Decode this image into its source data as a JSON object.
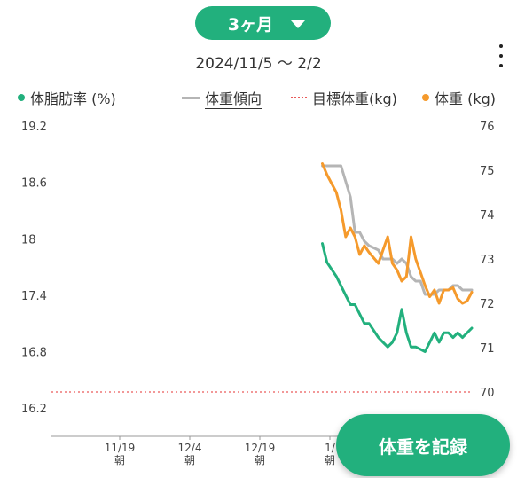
{
  "header": {
    "period_label": "3ヶ月",
    "date_range": "2024/11/5 〜 2/2"
  },
  "legend": {
    "body_fat": "体脂肪率 (%)",
    "trend": "体重傾向",
    "target": "目標体重(kg)",
    "weight": "体重 (kg)"
  },
  "colors": {
    "accent": "#22b07d",
    "body_fat": "#22b07d",
    "trend": "#b5b5b5",
    "target": "#e95a5a",
    "weight": "#f59a2c"
  },
  "record_button": "体重を記録",
  "chart_data": {
    "type": "line",
    "x_tick_labels": [
      {
        "date": "11/19",
        "sub": "朝"
      },
      {
        "date": "12/4",
        "sub": "朝"
      },
      {
        "date": "12/19",
        "sub": "朝"
      },
      {
        "date": "1/",
        "sub": "朝"
      }
    ],
    "left_axis": {
      "ticks": [
        "19.2",
        "18.6",
        "18",
        "17.4",
        "16.8",
        "16.2"
      ],
      "ylim": [
        15.9,
        19.2
      ]
    },
    "right_axis": {
      "ticks": [
        "76",
        "75",
        "74",
        "73",
        "72",
        "71",
        "70"
      ],
      "ylim": [
        69.0,
        76.0
      ]
    },
    "x_day_range": [
      0,
      90
    ],
    "target_weight": 70.0,
    "series": [
      {
        "name": "体脂肪率 (%)",
        "axis": "left",
        "x": [
          58,
          59,
          61,
          63,
          64,
          65,
          67,
          68,
          70,
          71,
          72,
          73,
          74,
          75,
          76,
          77,
          78,
          80,
          81,
          82,
          83,
          84,
          85,
          86,
          87,
          88,
          89,
          90
        ],
        "y": [
          17.95,
          17.75,
          17.6,
          17.4,
          17.3,
          17.3,
          17.1,
          17.1,
          16.95,
          16.9,
          16.85,
          16.9,
          17.0,
          17.25,
          17.0,
          16.85,
          16.85,
          16.8,
          16.9,
          17.0,
          16.9,
          17.0,
          17.0,
          16.95,
          17.0,
          16.95,
          17.0,
          17.05
        ]
      },
      {
        "name": "体重傾向",
        "axis": "right",
        "x": [
          58,
          59,
          61,
          62,
          64,
          65,
          66,
          67,
          68,
          70,
          71,
          72,
          73,
          74,
          75,
          76,
          77,
          78,
          79,
          80,
          82,
          83,
          84,
          85,
          86,
          87,
          88,
          89,
          90
        ],
        "y": [
          75.1,
          75.1,
          75.1,
          75.1,
          74.4,
          73.6,
          73.6,
          73.4,
          73.3,
          73.2,
          73.0,
          73.0,
          73.0,
          72.9,
          73.0,
          72.9,
          72.6,
          72.5,
          72.5,
          72.2,
          72.2,
          72.3,
          72.3,
          72.3,
          72.4,
          72.4,
          72.3,
          72.3,
          72.3
        ]
      },
      {
        "name": "体重 (kg)",
        "axis": "right",
        "x": [
          58,
          59,
          61,
          62,
          63,
          64,
          65,
          66,
          67,
          68,
          70,
          71,
          72,
          73,
          74,
          75,
          76,
          77,
          78,
          79,
          80,
          81,
          82,
          83,
          84,
          85,
          86,
          87,
          88,
          89,
          90
        ],
        "y": [
          75.15,
          74.9,
          74.5,
          74.1,
          73.5,
          73.7,
          73.5,
          73.1,
          73.3,
          73.15,
          72.9,
          73.2,
          73.5,
          72.9,
          72.75,
          72.5,
          72.6,
          73.5,
          73.0,
          72.7,
          72.4,
          72.15,
          72.3,
          72.0,
          72.3,
          72.3,
          72.35,
          72.1,
          72.0,
          72.05,
          72.25
        ]
      }
    ]
  }
}
